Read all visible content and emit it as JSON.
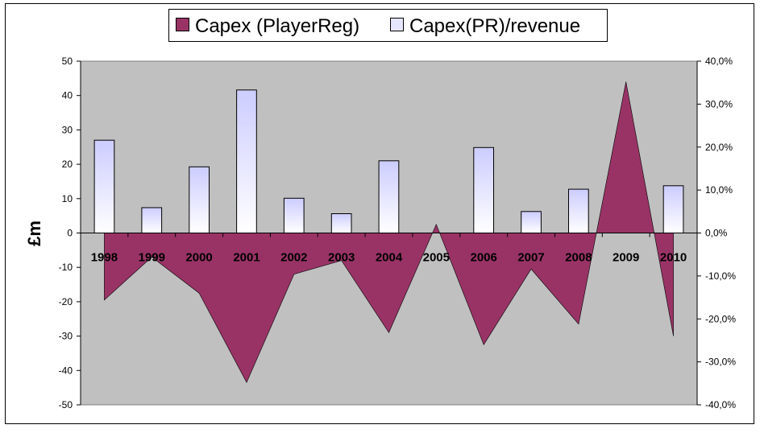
{
  "chart_data": {
    "type": "bar",
    "categories": [
      "1998",
      "1999",
      "2000",
      "2001",
      "2002",
      "2003",
      "2004",
      "2005",
      "2006",
      "2007",
      "2008",
      "2009",
      "2010"
    ],
    "series": [
      {
        "name": "Capex (PlayerReg)",
        "type": "area",
        "axis": "left",
        "color": "#993366",
        "values": [
          -19.5,
          -7,
          -17.5,
          -43.5,
          -12,
          -8,
          -29,
          2.5,
          -32.5,
          -10.5,
          -26.5,
          44,
          -30
        ]
      },
      {
        "name": "Capex(PR)/revenue",
        "type": "bar",
        "axis": "right",
        "color": "#e6e6ff",
        "values": [
          0.216,
          0.059,
          0.154,
          0.333,
          0.081,
          0.045,
          0.168,
          0,
          0.199,
          0.05,
          0.102,
          0,
          0.11
        ]
      }
    ],
    "ylabel": "£m",
    "ylim": [
      -50,
      50
    ],
    "y_ticks": [
      50,
      40,
      30,
      20,
      10,
      0,
      -10,
      -20,
      -30,
      -40,
      -50
    ],
    "y_tick_labels": [
      "50",
      "40",
      "30",
      "20",
      "10",
      "0",
      "-10",
      "-20",
      "-30",
      "-40",
      "-50"
    ],
    "y2lim": [
      -0.4,
      0.4
    ],
    "y2_ticks": [
      0.4,
      0.3,
      0.2,
      0.1,
      0,
      -0.1,
      -0.2,
      -0.3,
      -0.4
    ],
    "y2_tick_labels": [
      "40,0%",
      "30,0%",
      "20,0%",
      "10,0%",
      "0,0%",
      "-10,0%",
      "-20,0%",
      "-30,0%",
      "-40,0%"
    ],
    "grid": false,
    "legend_position": "top",
    "plot_background": "#c0c0c0"
  }
}
